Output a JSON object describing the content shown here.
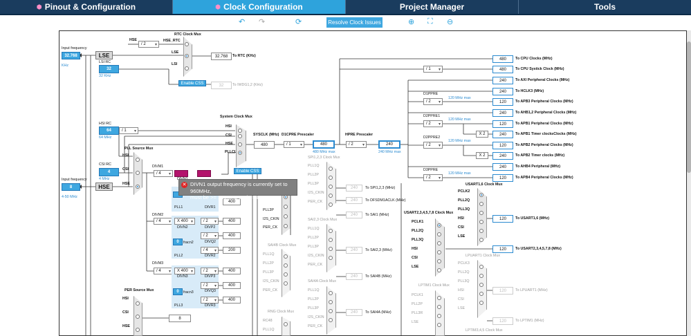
{
  "tabs": [
    {
      "label": "Pinout & Configuration",
      "marker": "⬢"
    },
    {
      "label": "Clock Configuration",
      "marker": "⬢",
      "active": true
    },
    {
      "label": "Project Manager"
    },
    {
      "label": "Tools"
    }
  ],
  "toolbar": {
    "resolve_label": "Resolve Clock Issues"
  },
  "left": {
    "input_freq_label": "Input frequency",
    "lse_value": "32.768",
    "lse_unit": "KHz",
    "lse_label": "LSE",
    "lsi_rc_label": "LSI RC",
    "lsi_value": "32",
    "lsi_unit": "32 KHz",
    "hsi_rc_label": "HSI RC",
    "hsi_value": "64",
    "hsi_unit": "64 MHz",
    "csi_rc_label": "CSI RC",
    "csi_value": "4",
    "csi_unit": "4 MHz",
    "input_freq2_label": "Input frequency",
    "hse_value": "8",
    "hse_unit": "4-50 MHz",
    "hse_label": "HSE"
  },
  "rtc": {
    "mux_label": "RTC Clock Mux",
    "hse_label": "HSE",
    "div": "/ 2",
    "hse_rtc_label": "HSE_RTC",
    "lse_label": "LSE",
    "lsi_label": "LSI",
    "value": "32.768",
    "to_label": "To RTC (KHz)",
    "enable_css": "Enable CSS",
    "iwdg_value": "32",
    "iwdg_label": "To IWDG1,2 (KHz)"
  },
  "hsi_div": "/ 1",
  "sysmux": {
    "label": "System Clock Mux",
    "hsi": "HSI",
    "csi": "CSI",
    "hse": "HSE",
    "pllclk": "PLLCLK",
    "enable_css": "Enable CSS"
  },
  "sysclk": {
    "label": "SYSCLK (MHz)",
    "value": "480",
    "d1cpre_label": "D1CPRE Prescaler",
    "d1cpre": "/ 1",
    "d1cpre_out": "480",
    "d1cpre_max": "480 MHz max",
    "hpre_label": "HPRE Prescaler",
    "hpre": "/ 2",
    "hpre_out": "240",
    "hpre_max": "240 MHz max"
  },
  "outputs": [
    {
      "value": "480",
      "label": "To CPU Clocks (MHz)"
    },
    {
      "value": "480",
      "label": "To CPU Systick Clock (MHz)"
    },
    {
      "value": "240",
      "label": "To AXI Peripheral Clocks (MHz)"
    },
    {
      "value": "240",
      "label": "To HCLK3 (MHz)"
    },
    {
      "value": "120",
      "label": "To APB3 Peripheral Clocks (MHz)"
    },
    {
      "value": "240",
      "label": "To AHB1,2 Peripheral Clocks (MHz)"
    },
    {
      "value": "120",
      "label": "To APB1 Peripheral Clocks (MHz)"
    },
    {
      "value": "240",
      "label": "To APB1 Timer clocksClocks (MHz)"
    },
    {
      "value": "120",
      "label": "To APB2 Peripheral Clocks (MHz)"
    },
    {
      "value": "240",
      "label": "To APB2 Timer clocks (MHz)"
    },
    {
      "value": "240",
      "label": "To AHB4 Peripheral (MHz)"
    },
    {
      "value": "120",
      "label": "To APB4 Peripheral Clocks (MHz)"
    }
  ],
  "systick_div": "/ 1",
  "prescalers": {
    "d1ppre_label": "D1PPRE",
    "d1ppre": "/ 2",
    "d1ppre_max": "120 MHz max",
    "d2ppre1_label": "D2PPRE1",
    "d2ppre1": "/ 2",
    "d2ppre1_max": "120 MHz max",
    "x2_a": "X 2",
    "d2ppre2_label": "D2PPRE2",
    "d2ppre2": "/ 2",
    "d2ppre2_max": "120 MHz max",
    "x2_b": "X 2",
    "d3ppre_label": "D3PPRE",
    "d3ppre": "/ 2",
    "d3ppre_max": "120 MHz max"
  },
  "pll": {
    "src_mux_label": "PLL Source Mux",
    "hsi": "HSI",
    "csi": "CSI",
    "hse": "HSE",
    "divm1_label": "DIVM1",
    "divm1": "/ 4",
    "divm2_label": "DIVM2",
    "divm2": "/ 4",
    "divm3_label": "DIVM3",
    "divm3": "/ 4",
    "pll1_label": "PLL1",
    "divn1_label": "DIVN1",
    "divr1_label": "DIVR1",
    "pll2_label": "PLL2",
    "fracn2_label": "fracn2",
    "divn2": "X 400",
    "divn2_label": "DIVN2",
    "divp2": "/ 2",
    "divp2_out": "400",
    "divp2_label": "DIVP2",
    "divq2": "/ 2",
    "divq2_out": "400",
    "divq2_label": "DIVQ2",
    "divr2": "/ 4",
    "divr2_out": "200",
    "divr2_label": "DIVR2",
    "pll3_label": "PLL3",
    "fracn3_label": "fracn3",
    "divn3": "X 400",
    "divn3_label": "DIVN3",
    "divp3": "/ 2",
    "divp3_out": "400",
    "divp3_label": "DIVP3",
    "divq3": "/ 2",
    "divq3_out": "400",
    "divq3_label": "DIVQ3",
    "divr3": "/ 2",
    "divr3_out": "400",
    "divr3_label": "DIVR3",
    "fracn2_value": "0",
    "fracn3_value": "0",
    "divr1_value": "400"
  },
  "tooltip": {
    "text1": "DIVN1 output frequency is currently set to 960MHz,",
    "text2": "must be >= 150MHz and <= 836MHz"
  },
  "spi123": {
    "label": "SPI1,2,3 Clock Mux",
    "inputs": [
      "PLL1Q",
      "PLL2P",
      "PLL3P",
      "I2S_CKIN",
      "PER_CK"
    ],
    "value": "240",
    "to": "To SPI1,2,3 (MHz)"
  },
  "dfsdm": {
    "value": "240",
    "to": "To DFSDM1ACLK (MHz)"
  },
  "sai1": {
    "value": "240",
    "to": "To SAI1 (MHz)"
  },
  "sai23": {
    "label": "SAI2,3 Clock Mux",
    "inputs": [
      "PLL1Q",
      "PLL2P",
      "PLL3P",
      "I2S_CKIN",
      "PER_CK"
    ],
    "value": "240",
    "to": "To SAI2,3 (MHz)"
  },
  "sai4b": {
    "label": "SAI4B Clock Mux",
    "inputs": [
      "PLL1Q",
      "PLL2P",
      "PLL3P",
      "I2S_CKIN",
      "PER_CK"
    ],
    "value": "240",
    "to": "To SAI4B (MHz)"
  },
  "sai4a": {
    "label": "SAI4A Clock Mux",
    "inputs": [
      "PLL1Q",
      "PLL2P",
      "PLL3P",
      "I2S_CKIN",
      "PER_CK"
    ],
    "value": "240",
    "to": "To SAI4A (MHz)"
  },
  "rng": {
    "label": "RNG Clock Mux",
    "inputs": [
      "RC48",
      "PLL1Q"
    ]
  },
  "usart16": {
    "label": "USART1,6 Clock Mux",
    "inputs": [
      "PCLK2",
      "PLL2Q",
      "PLL3Q",
      "HSI",
      "CSI",
      "LSE"
    ],
    "value": "120",
    "to": "To USART1,6 (MHz)"
  },
  "usart2": {
    "label": "USART2,3,4,5,7,8 Clock Mux",
    "inputs": [
      "PCLK1",
      "PLL2Q",
      "PLL3Q",
      "HSI",
      "CSI",
      "LSE"
    ],
    "value": "120",
    "to": "To USART2,3,4,5,7,8 (MHz)"
  },
  "lpuart1": {
    "label": "LPUART1 Clock Mux",
    "inputs": [
      "PCLK3",
      "PLL2Q",
      "PLL3Q",
      "HSI",
      "CSI",
      "LSE"
    ],
    "value": "120",
    "to": "To LPUART1 (MHz)"
  },
  "lptim1": {
    "label": "LPTIM1 Clock Mux",
    "inputs": [
      "PCLK1",
      "PLL2P",
      "PLL3R",
      "LSE"
    ],
    "value": "120",
    "to": "To LPTIM1 (MHz)"
  },
  "lptim345_label": "LPTIM3,4,5 Clock Mux",
  "per": {
    "label": "PER Source Mux",
    "hsi": "HSI",
    "csi": "CSI",
    "hse": "HSE",
    "value": "8"
  }
}
